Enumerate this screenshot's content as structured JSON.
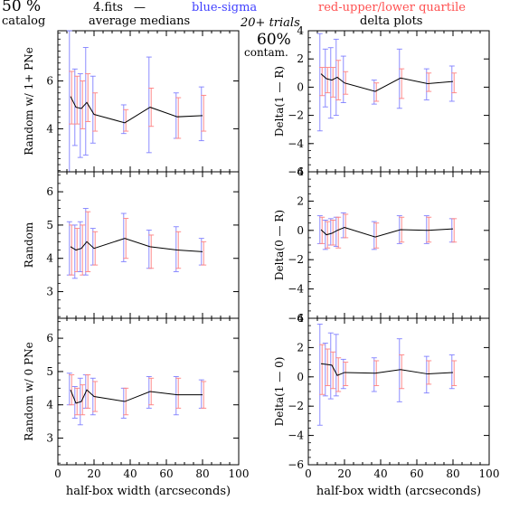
{
  "header": {
    "percent": "50 %",
    "catalog": "catalog",
    "fits": "4.fits",
    "dash": "—",
    "medians": "average medians",
    "blue_legend": "blue-sigma",
    "red_legend": "red-upper/lower quartile",
    "trials": "20+ trials",
    "contam_pct": "60%",
    "contam": "contam.",
    "delta": "delta plots"
  },
  "colors": {
    "line": "#000000",
    "sigma": "#8080ff",
    "quartile": "#ff8080",
    "axis": "#000000"
  },
  "x_axis": {
    "label": "half-box width (arcseconds)",
    "ticks": [
      "0",
      "20",
      "40",
      "60",
      "80",
      "100"
    ],
    "range": [
      0,
      100
    ]
  },
  "chart_data": [
    {
      "type": "line",
      "panel": "left-top",
      "ylabel": "Random w/ 1+ PNe",
      "ylim": [
        2.2,
        8.1
      ],
      "y_ticks": [
        "4",
        "6"
      ],
      "x": [
        7,
        10,
        13,
        16,
        20,
        37,
        51,
        66,
        80
      ],
      "median": [
        5.35,
        4.9,
        4.85,
        5.1,
        4.6,
        4.25,
        4.9,
        4.5,
        4.55
      ],
      "sigma_lo": [
        0.5,
        3.3,
        2.8,
        2.9,
        3.4,
        3.8,
        3.0,
        3.6,
        3.5
      ],
      "sigma_hi": [
        8.1,
        6.5,
        6.3,
        7.4,
        6.2,
        5.0,
        7.0,
        5.5,
        5.75
      ],
      "q_lo": [
        4.2,
        4.2,
        4.0,
        4.3,
        3.9,
        3.9,
        4.1,
        3.6,
        3.9
      ],
      "q_hi": [
        6.4,
        6.2,
        6.0,
        6.3,
        5.5,
        4.8,
        5.7,
        5.3,
        5.4
      ]
    },
    {
      "type": "line",
      "panel": "right-top",
      "ylabel": "Delta(1 — R)",
      "ylim": [
        -6,
        4
      ],
      "y_ticks": [
        "4",
        "2",
        "0",
        "−2",
        "−4",
        "−6"
      ],
      "x": [
        7,
        10,
        13,
        16,
        20,
        37,
        51,
        66,
        80
      ],
      "median": [
        0.95,
        0.6,
        0.5,
        0.7,
        0.3,
        -0.3,
        0.65,
        0.25,
        0.4
      ],
      "sigma_lo": [
        -3.1,
        -1.4,
        -2.2,
        -2.0,
        -1.1,
        -1.2,
        -1.5,
        -0.9,
        -1.0
      ],
      "sigma_hi": [
        3.8,
        2.7,
        2.8,
        3.4,
        2.2,
        0.5,
        2.7,
        1.3,
        1.5
      ],
      "q_lo": [
        -0.6,
        -0.4,
        -0.7,
        -0.9,
        -0.5,
        -1.0,
        -0.8,
        -0.3,
        -0.4
      ],
      "q_hi": [
        1.4,
        1.4,
        1.4,
        1.9,
        1.1,
        0.3,
        1.3,
        1.0,
        1.0
      ]
    },
    {
      "type": "line",
      "panel": "left-middle",
      "ylabel": "Random",
      "ylim": [
        2.2,
        6.6
      ],
      "y_ticks": [
        "6",
        "5",
        "4",
        "3"
      ],
      "x": [
        7,
        10,
        13,
        16,
        20,
        37,
        51,
        66,
        80
      ],
      "median": [
        4.35,
        4.25,
        4.3,
        4.5,
        4.3,
        4.6,
        4.35,
        4.25,
        4.2
      ],
      "sigma_lo": [
        3.5,
        3.4,
        3.6,
        3.5,
        3.8,
        3.9,
        3.7,
        3.6,
        3.8
      ],
      "sigma_hi": [
        5.1,
        5.0,
        5.1,
        5.5,
        4.9,
        5.35,
        4.85,
        4.95,
        4.6
      ],
      "q_lo": [
        3.5,
        3.6,
        3.5,
        3.6,
        3.8,
        4.0,
        3.7,
        3.7,
        3.8
      ],
      "q_hi": [
        5.0,
        4.9,
        5.0,
        5.4,
        4.8,
        5.2,
        4.7,
        4.8,
        4.5
      ]
    },
    {
      "type": "line",
      "panel": "right-middle",
      "ylabel": "Delta(0 — R)",
      "ylim": [
        -6,
        4
      ],
      "y_ticks": [
        "4",
        "2",
        "0",
        "−2",
        "−4",
        "−6"
      ],
      "x": [
        7,
        10,
        13,
        16,
        20,
        37,
        51,
        66,
        80
      ],
      "median": [
        0.05,
        -0.3,
        -0.2,
        0.0,
        0.2,
        -0.45,
        0.05,
        0.0,
        0.1
      ],
      "sigma_lo": [
        -0.9,
        -1.3,
        -1.0,
        -1.1,
        -0.5,
        -1.3,
        -0.9,
        -0.9,
        -0.8
      ],
      "sigma_hi": [
        1.0,
        0.7,
        0.8,
        0.9,
        1.2,
        0.6,
        1.0,
        1.0,
        0.8
      ],
      "q_lo": [
        -0.9,
        -1.2,
        -1.0,
        -1.2,
        -0.5,
        -1.2,
        -0.8,
        -0.8,
        -0.8
      ],
      "q_hi": [
        0.9,
        0.6,
        0.7,
        0.9,
        1.1,
        0.5,
        0.9,
        0.9,
        0.8
      ]
    },
    {
      "type": "line",
      "panel": "left-bottom",
      "ylabel": "Random w/ 0 PNe",
      "ylim": [
        2.2,
        6.6
      ],
      "y_ticks": [
        "6",
        "5",
        "4",
        "3"
      ],
      "x": [
        7,
        10,
        13,
        16,
        20,
        37,
        51,
        66,
        80
      ],
      "median": [
        4.45,
        4.05,
        4.1,
        4.45,
        4.25,
        4.1,
        4.4,
        4.3,
        4.3
      ],
      "sigma_lo": [
        4.0,
        3.6,
        3.4,
        3.9,
        3.7,
        3.6,
        3.9,
        3.7,
        3.9
      ],
      "sigma_hi": [
        4.95,
        4.55,
        4.8,
        4.9,
        4.8,
        4.5,
        4.85,
        4.85,
        4.75
      ],
      "q_lo": [
        4.0,
        3.7,
        3.7,
        3.9,
        3.8,
        3.7,
        4.0,
        3.9,
        3.9
      ],
      "q_hi": [
        4.9,
        4.5,
        4.6,
        4.9,
        4.7,
        4.5,
        4.8,
        4.8,
        4.7
      ]
    },
    {
      "type": "line",
      "panel": "right-bottom",
      "ylabel": "Delta(1 — 0)",
      "ylim": [
        -6,
        4
      ],
      "y_ticks": [
        "4",
        "2",
        "0",
        "−2",
        "−4",
        "−6"
      ],
      "x": [
        7,
        10,
        13,
        16,
        20,
        37,
        51,
        66,
        80
      ],
      "median": [
        0.9,
        0.85,
        0.8,
        0.1,
        0.3,
        0.25,
        0.5,
        0.2,
        0.3
      ],
      "sigma_lo": [
        -3.3,
        -1.3,
        -1.5,
        -1.3,
        -0.8,
        -1.0,
        -1.7,
        -1.1,
        -0.8
      ],
      "sigma_hi": [
        3.6,
        2.3,
        3.0,
        2.9,
        1.2,
        1.3,
        2.6,
        1.4,
        1.5
      ],
      "q_lo": [
        -1.2,
        -0.6,
        -0.8,
        -1.0,
        -0.6,
        -0.6,
        -0.8,
        -0.5,
        -0.6
      ],
      "q_hi": [
        2.2,
        1.9,
        1.7,
        1.3,
        1.0,
        1.1,
        1.5,
        1.1,
        1.1
      ]
    }
  ]
}
